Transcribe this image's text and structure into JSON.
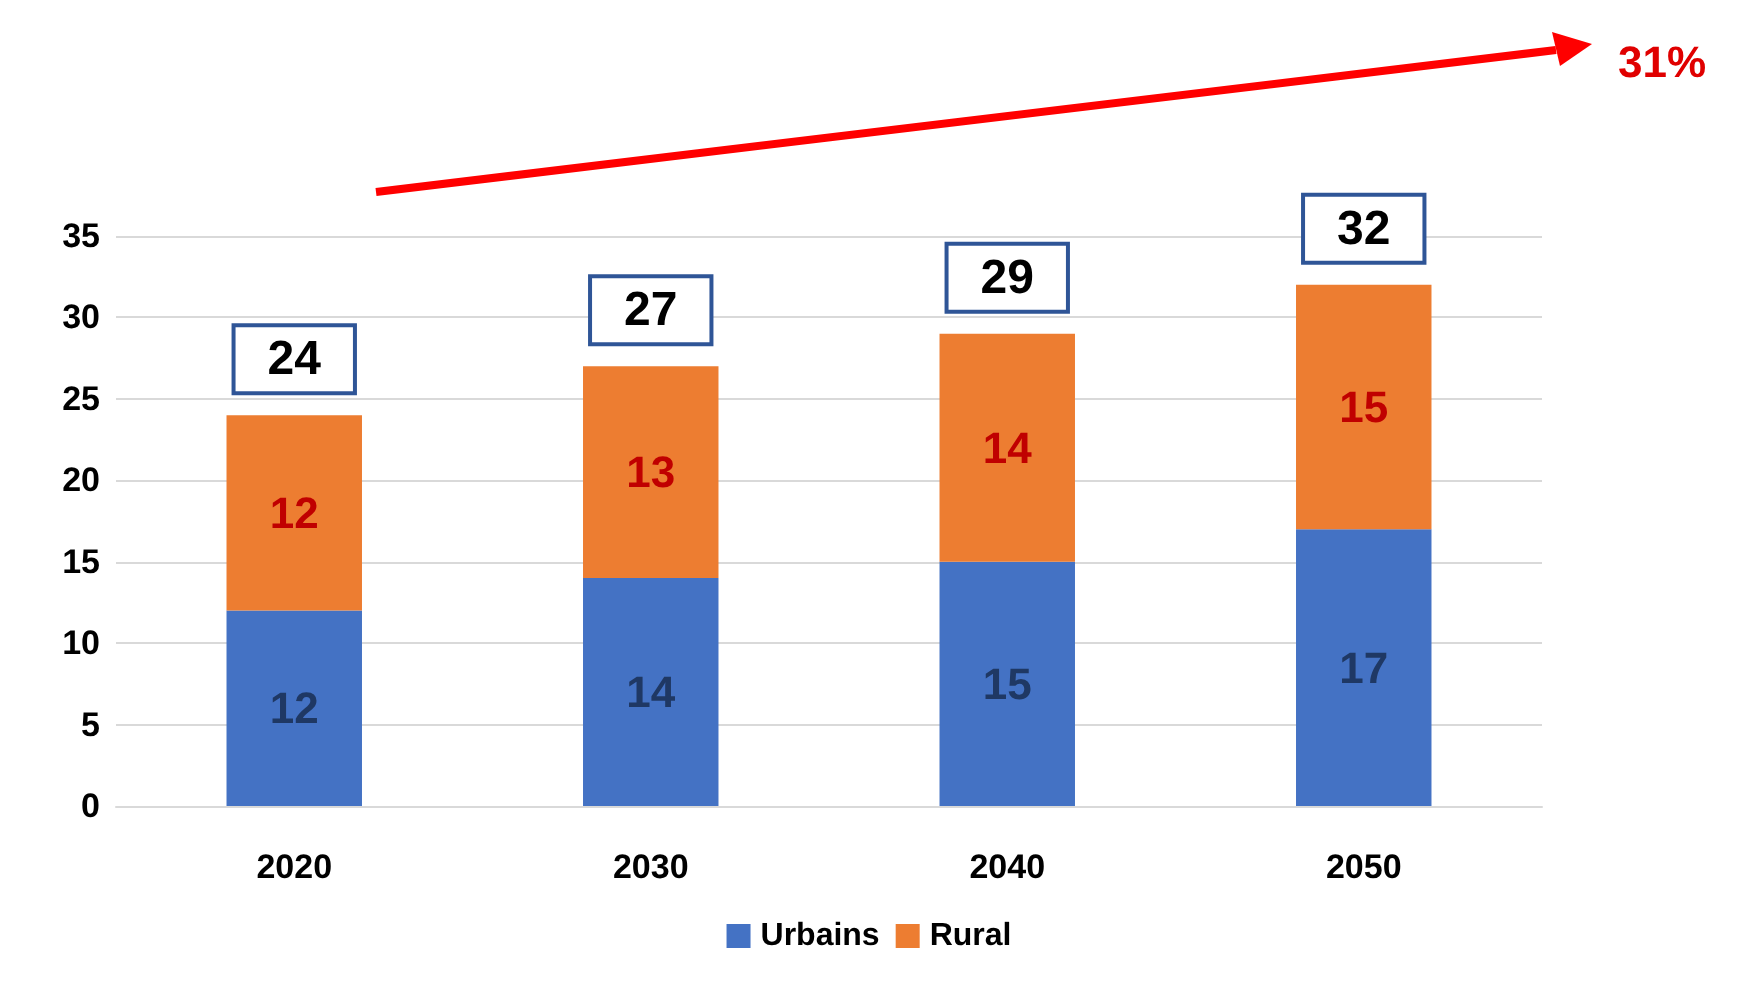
{
  "chart_data": {
    "type": "bar",
    "stacked": true,
    "categories": [
      "2020",
      "2030",
      "2040",
      "2050"
    ],
    "series": [
      {
        "name": "Urbains",
        "color": "#4472c4",
        "values": [
          12,
          14,
          15,
          17
        ]
      },
      {
        "name": "Rural",
        "color": "#ed7d31",
        "values": [
          12,
          13,
          14,
          15
        ]
      }
    ],
    "totals": [
      "24",
      "27",
      "29",
      "32"
    ],
    "ylim": [
      0,
      35
    ],
    "yticks": [
      0,
      5,
      10,
      15,
      20,
      25,
      30,
      35
    ],
    "grid": "y",
    "legend": "bottom",
    "data_labels": true,
    "annotations": [
      "31%"
    ]
  }
}
